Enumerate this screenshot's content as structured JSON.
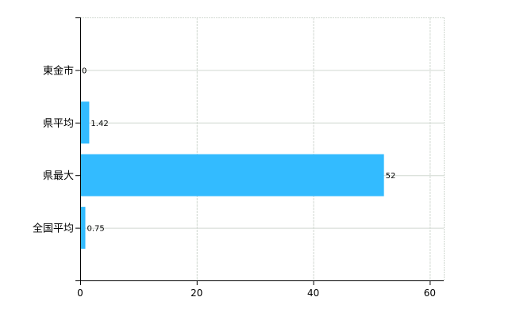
{
  "chart_data": {
    "type": "bar",
    "orientation": "horizontal",
    "categories": [
      "東金市",
      "県平均",
      "県最大",
      "全国平均"
    ],
    "values": [
      0,
      1.42,
      52,
      0.75
    ],
    "data_labels": [
      "0",
      "1.42",
      "52",
      "0.75"
    ],
    "title": "",
    "xlabel": "",
    "ylabel": "",
    "xlim": [
      0,
      62.4
    ],
    "xticks": [
      0,
      20,
      40,
      60
    ],
    "xtick_labels": [
      "0",
      "20",
      "40",
      "60"
    ],
    "grid": true,
    "legend": "none",
    "colors": {
      "bar": "#33bbff",
      "grid": "#d0d8d0",
      "axis": "#000000"
    }
  }
}
